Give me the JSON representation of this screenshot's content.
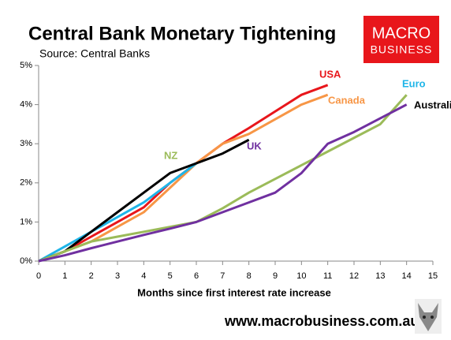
{
  "chart_data": {
    "type": "line",
    "title": "Central Bank Monetary Tightening",
    "subtitle": "Source: Central Banks",
    "x_label": "Months since first interest rate increase",
    "footer": "www.macrobusiness.com.au",
    "logo": [
      "MACRO",
      "BUSINESS"
    ],
    "x": [
      0,
      1,
      2,
      3,
      4,
      5,
      6,
      7,
      8,
      9,
      10,
      11,
      12,
      13,
      14
    ],
    "xlim": [
      0,
      15
    ],
    "xticks": [
      0,
      1,
      2,
      3,
      4,
      5,
      6,
      7,
      8,
      9,
      10,
      11,
      12,
      13,
      14,
      15
    ],
    "ylim": [
      0,
      5
    ],
    "yticks": [
      {
        "value": 0,
        "label": "0%"
      },
      {
        "value": 1,
        "label": "1%"
      },
      {
        "value": 2,
        "label": "2%"
      },
      {
        "value": 3,
        "label": "3%"
      },
      {
        "value": 4,
        "label": "4%"
      },
      {
        "value": 5,
        "label": "5%"
      }
    ],
    "grid": false,
    "series": [
      {
        "name": "USA",
        "color": "#e8161b",
        "values": [
          0,
          0.25,
          0.625,
          1.0,
          1.375,
          2.0,
          2.5,
          3.0,
          3.4,
          3.825,
          4.25,
          4.5,
          null,
          null,
          null
        ]
      },
      {
        "name": "Canada",
        "color": "#f79646",
        "values": [
          0,
          0.25,
          0.5,
          0.875,
          1.25,
          1.875,
          2.5,
          3.0,
          3.25,
          3.625,
          4.0,
          4.25,
          null,
          null,
          null
        ]
      },
      {
        "name": "Euro",
        "color": "#1fb5e8",
        "values": [
          0,
          0.375,
          0.75,
          1.125,
          1.5,
          2.0,
          2.5,
          null,
          null,
          null,
          null,
          null,
          null,
          null,
          null
        ]
      },
      {
        "name": "Australia",
        "color": "#000000",
        "values": [
          0,
          0.25,
          0.75,
          1.25,
          1.75,
          2.25,
          2.5,
          2.75,
          3.1,
          null,
          null,
          null,
          null,
          null,
          null
        ]
      },
      {
        "name": "NZ",
        "color": "#9bbb59",
        "values": [
          0,
          0.25,
          0.5,
          0.625,
          0.75,
          0.875,
          1.0,
          1.35,
          1.75,
          2.1,
          2.45,
          2.8,
          3.15,
          3.5,
          4.25
        ]
      },
      {
        "name": "UK",
        "color": "#7030a0",
        "values": [
          0,
          0.15,
          0.33,
          0.5,
          0.67,
          0.83,
          1.0,
          1.25,
          1.5,
          1.75,
          2.25,
          3.0,
          3.3,
          3.65,
          4.0
        ]
      }
    ]
  }
}
